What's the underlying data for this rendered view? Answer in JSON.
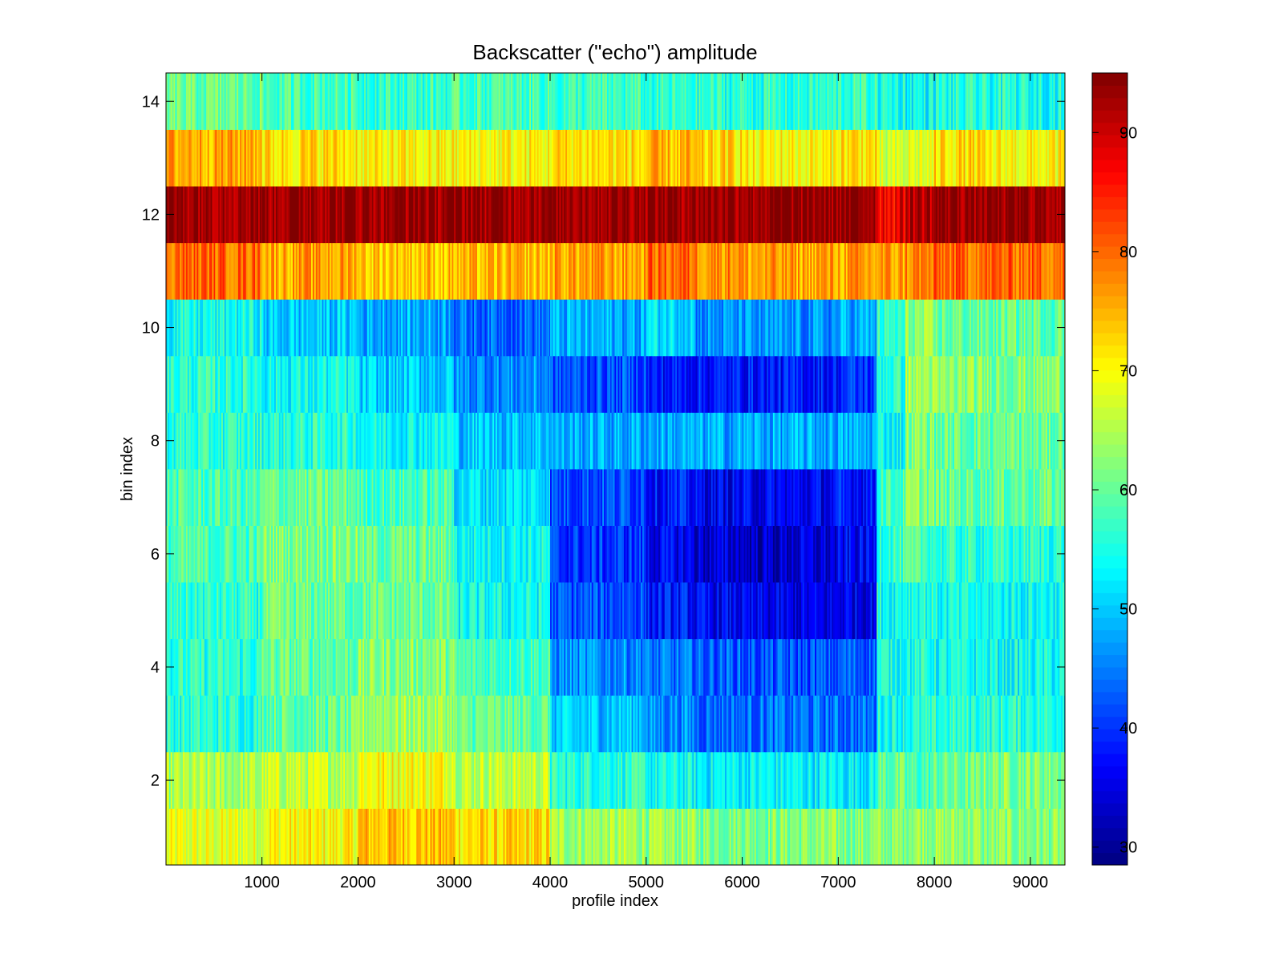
{
  "chart_data": {
    "type": "heatmap",
    "title": "Backscatter (\"echo\") amplitude",
    "xlabel": "profile index",
    "ylabel": "bin index",
    "xlim": [
      1,
      9360
    ],
    "ylim": [
      0.5,
      14.5
    ],
    "x_ticks": [
      1000,
      2000,
      3000,
      4000,
      5000,
      6000,
      7000,
      8000,
      9000
    ],
    "y_ticks": [
      2,
      4,
      6,
      8,
      10,
      12,
      14
    ],
    "colorbar": {
      "colormap": "jet",
      "clim": [
        28.5,
        95
      ],
      "ticks": [
        30,
        40,
        50,
        60,
        70,
        80,
        90
      ]
    },
    "segment_edges": [
      0,
      1000,
      2000,
      3000,
      4000,
      5000,
      5500,
      6000,
      6500,
      7000,
      7400,
      7700,
      8000,
      8500,
      9000,
      9360
    ],
    "bins": [
      {
        "bin": 1,
        "values": [
          68,
          70,
          74,
          72,
          64,
          63,
          62,
          62,
          62,
          62,
          62,
          64,
          63,
          62,
          62
        ]
      },
      {
        "bin": 2,
        "values": [
          64,
          66,
          70,
          66,
          56,
          54,
          53,
          53,
          53,
          53,
          60,
          58,
          60,
          62,
          62
        ]
      },
      {
        "bin": 3,
        "values": [
          56,
          60,
          64,
          60,
          50,
          46,
          44,
          44,
          44,
          44,
          55,
          55,
          56,
          56,
          56
        ]
      },
      {
        "bin": 4,
        "values": [
          56,
          60,
          62,
          58,
          46,
          44,
          43,
          42,
          42,
          43,
          55,
          55,
          54,
          54,
          54
        ]
      },
      {
        "bin": 5,
        "values": [
          56,
          60,
          60,
          54,
          42,
          38,
          36,
          35,
          35,
          36,
          55,
          56,
          54,
          54,
          54
        ]
      },
      {
        "bin": 6,
        "values": [
          58,
          62,
          60,
          54,
          40,
          36,
          34,
          33,
          34,
          36,
          57,
          58,
          56,
          56,
          56
        ]
      },
      {
        "bin": 7,
        "values": [
          58,
          60,
          58,
          52,
          42,
          38,
          36,
          36,
          36,
          38,
          58,
          62,
          60,
          60,
          60
        ]
      },
      {
        "bin": 8,
        "values": [
          56,
          56,
          54,
          50,
          48,
          48,
          48,
          48,
          48,
          48,
          54,
          62,
          60,
          60,
          60
        ]
      },
      {
        "bin": 9,
        "values": [
          56,
          54,
          50,
          46,
          42,
          38,
          38,
          38,
          38,
          40,
          56,
          64,
          62,
          62,
          62
        ]
      },
      {
        "bin": 10,
        "values": [
          54,
          50,
          48,
          44,
          48,
          52,
          46,
          46,
          46,
          48,
          56,
          62,
          60,
          60,
          60
        ]
      },
      {
        "bin": 11,
        "values": [
          80,
          76,
          74,
          74,
          76,
          80,
          78,
          76,
          76,
          76,
          76,
          78,
          80,
          80,
          80
        ]
      },
      {
        "bin": 12,
        "values": [
          94,
          94,
          94,
          94,
          94,
          94,
          94,
          94,
          94,
          94,
          88,
          92,
          94,
          94,
          94
        ]
      },
      {
        "bin": 13,
        "values": [
          76,
          72,
          70,
          70,
          72,
          74,
          72,
          70,
          70,
          72,
          66,
          68,
          72,
          70,
          70
        ]
      },
      {
        "bin": 14,
        "values": [
          60,
          58,
          57,
          58,
          57,
          56,
          56,
          56,
          56,
          57,
          55,
          54,
          55,
          55,
          55
        ]
      }
    ]
  }
}
